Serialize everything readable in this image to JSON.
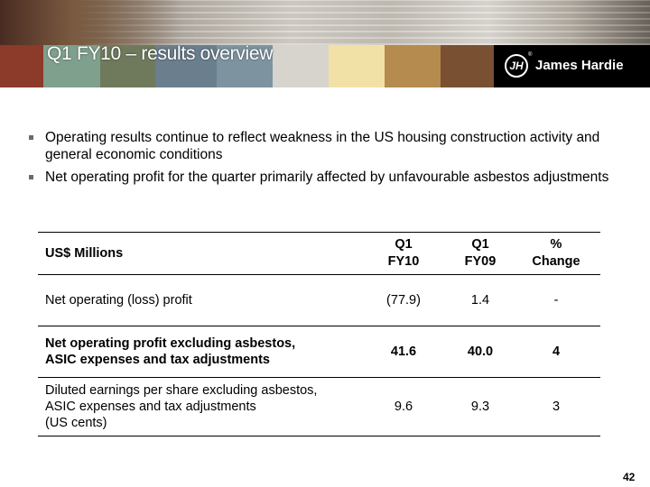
{
  "slide": {
    "title": "Q1 FY10 – results overview",
    "page_number": "42"
  },
  "logo": {
    "name": "James Hardie",
    "mark": "JH",
    "registered": "®"
  },
  "banner": {
    "swatch_colors": [
      "#8c3a2a",
      "#7fa08c",
      "#6f7a5c",
      "#6a7e8e",
      "#7d94a0",
      "#d7d4cd",
      "#f2e1a6",
      "#b58b4f",
      "#7a5033"
    ]
  },
  "bullets": [
    "Operating results continue to reflect weakness in the US housing construction activity and general economic conditions",
    "Net operating profit for the quarter primarily affected by unfavourable asbestos adjustments"
  ],
  "table": {
    "header": {
      "label": "US$ Millions",
      "col1": [
        "Q1",
        "FY10"
      ],
      "col2": [
        "Q1",
        "FY09"
      ],
      "col3": [
        "%",
        "Change"
      ]
    },
    "rows": [
      {
        "label": [
          "Net operating (loss) profit"
        ],
        "q1_fy10": "(77.9)",
        "q1_fy09": "1.4",
        "change": "-"
      },
      {
        "label": [
          "Net operating profit excluding asbestos,",
          "ASIC expenses and tax adjustments"
        ],
        "q1_fy10": "41.6",
        "q1_fy09": "40.0",
        "change": "4"
      },
      {
        "label": [
          "Diluted earnings per share excluding asbestos,",
          "ASIC expenses and tax adjustments",
          "(US cents)"
        ],
        "q1_fy10": "9.6",
        "q1_fy09": "9.3",
        "change": "3"
      }
    ]
  }
}
